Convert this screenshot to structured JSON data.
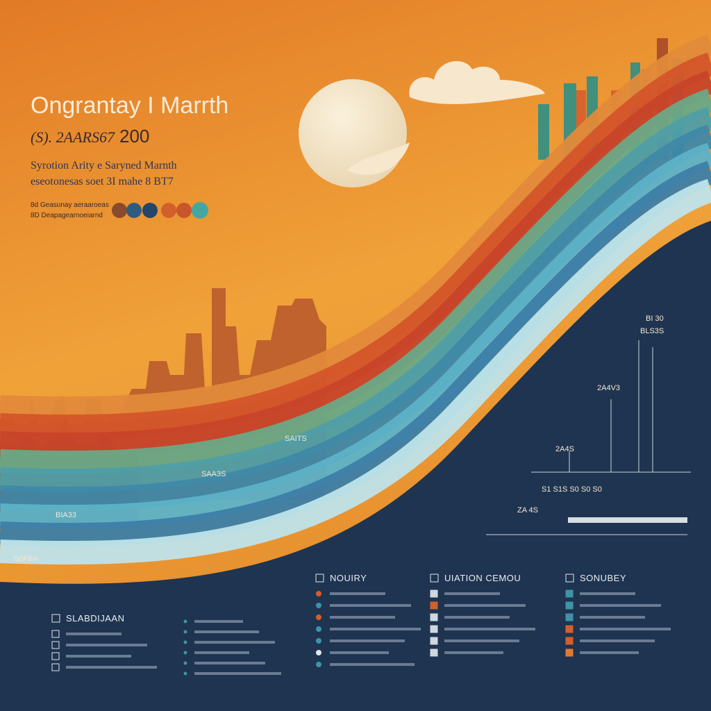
{
  "header": {
    "title": "Ongrantay I Marrth",
    "code": "(S). 2AARS67",
    "year": "200",
    "lines": [
      "Syrotion Arity e Saryned Marnth",
      "eseotonesas soet 3I mahe 8 BT7"
    ],
    "legend": [
      "8d  Geasunay aeraaroeas",
      "8D  Deapagearnoeiarnd"
    ]
  },
  "chart_labels": [
    "BI 30",
    "BLS3S",
    "2A4V3",
    "2A4S",
    "S1  S1S  S0  S0  S0",
    "ZA 4S",
    "SAITS",
    "SAA3S",
    "BIA33",
    "S0FBA"
  ],
  "panels": [
    {
      "title": "SLABDIJAAN"
    },
    {
      "title": "NOUIRY"
    },
    {
      "title": "UIATION CEMOU"
    },
    {
      "title": "SONUBEY"
    }
  ]
}
